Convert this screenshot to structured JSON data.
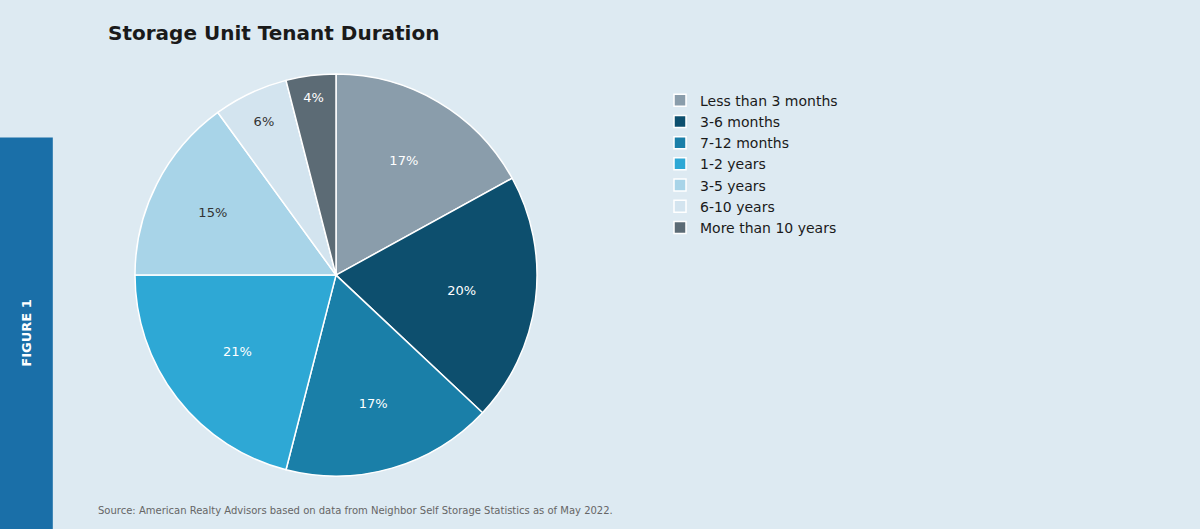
{
  "chart_data": {
    "type": "pie",
    "title": "Storage Unit Tenant Duration",
    "categories": [
      "Less than 3 months",
      "3-6 months",
      "7-12 months",
      "1-2 years",
      "3-5 years",
      "6-10 years",
      "More than 10 years"
    ],
    "values": [
      17,
      20,
      17,
      21,
      15,
      6,
      4
    ],
    "value_labels": [
      "17%",
      "20%",
      "17%",
      "21%",
      "15%",
      "6%",
      "4%"
    ],
    "colors": [
      "#8a9dab",
      "#0d4f6e",
      "#1a7fa8",
      "#2ea8d5",
      "#a8d4e8",
      "#d3e4ef",
      "#5c6b75"
    ],
    "data_labels": true,
    "legend": "right",
    "annotations": [
      "FIGURE 1",
      "Source: American Realty Advisors based on data from Neighbor Self Storage Statistics as of May 2022."
    ]
  }
}
